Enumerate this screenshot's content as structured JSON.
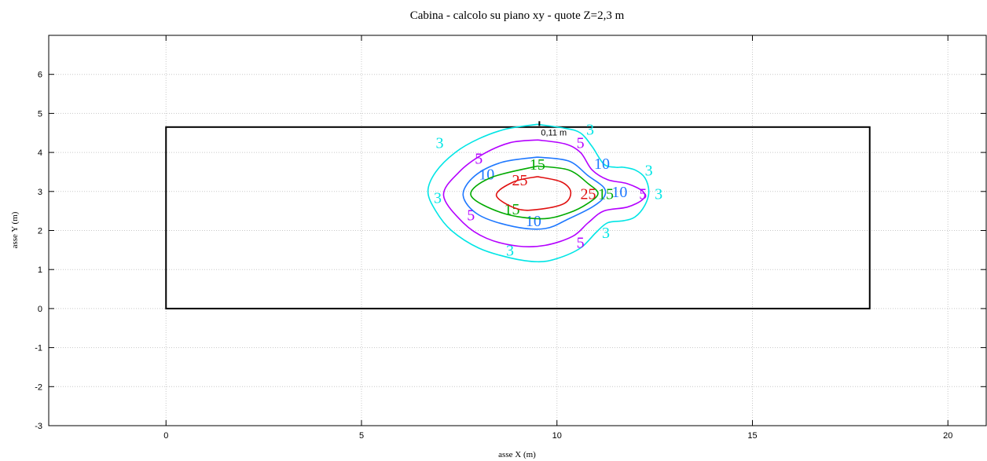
{
  "chart_data": {
    "type": "contour",
    "title": "Cabina  -  calcolo su piano xy  -  quote Z=2,3 m",
    "xlabel": "asse X (m)",
    "ylabel": "asse Y (m)",
    "xlim": [
      -3,
      21
    ],
    "ylim": [
      -3,
      7
    ],
    "xticks": [
      0,
      5,
      10,
      15,
      20
    ],
    "yticks": [
      -3,
      -2,
      -1,
      0,
      1,
      2,
      3,
      4,
      5,
      6
    ],
    "grid": true,
    "room_outline": {
      "x": [
        0,
        18
      ],
      "y": [
        0,
        4.65
      ]
    },
    "source_marker": {
      "x": 9.55,
      "y": 4.72,
      "label": "0,11 m"
    },
    "levels": [
      {
        "value": 3,
        "color": "#00e5e5",
        "path": [
          [
            9.5,
            4.72
          ],
          [
            10.2,
            4.62
          ],
          [
            10.6,
            4.5
          ],
          [
            10.9,
            4.15
          ],
          [
            11.2,
            3.7
          ],
          [
            11.5,
            3.62
          ],
          [
            11.7,
            3.62
          ],
          [
            12.0,
            3.55
          ],
          [
            12.25,
            3.35
          ],
          [
            12.35,
            3.0
          ],
          [
            12.25,
            2.65
          ],
          [
            12.0,
            2.35
          ],
          [
            11.7,
            2.25
          ],
          [
            11.3,
            2.2
          ],
          [
            11.0,
            1.95
          ],
          [
            10.6,
            1.55
          ],
          [
            10.0,
            1.28
          ],
          [
            9.5,
            1.2
          ],
          [
            8.8,
            1.3
          ],
          [
            8.0,
            1.55
          ],
          [
            7.3,
            2.0
          ],
          [
            6.9,
            2.5
          ],
          [
            6.7,
            3.0
          ],
          [
            6.9,
            3.5
          ],
          [
            7.4,
            4.0
          ],
          [
            8.0,
            4.35
          ],
          [
            8.7,
            4.6
          ],
          [
            9.5,
            4.72
          ]
        ],
        "labels": [
          [
            7.0,
            4.25
          ],
          [
            10.85,
            4.6
          ],
          [
            6.95,
            2.85
          ],
          [
            8.8,
            1.5
          ],
          [
            11.25,
            1.95
          ],
          [
            12.35,
            3.55
          ],
          [
            12.6,
            2.95
          ]
        ]
      },
      {
        "value": 5,
        "color": "#b400ff",
        "path": [
          [
            9.5,
            4.32
          ],
          [
            10.2,
            4.22
          ],
          [
            10.6,
            4.0
          ],
          [
            10.9,
            3.55
          ],
          [
            11.3,
            3.3
          ],
          [
            11.8,
            3.2
          ],
          [
            12.2,
            3.0
          ],
          [
            12.2,
            2.8
          ],
          [
            11.8,
            2.6
          ],
          [
            11.2,
            2.5
          ],
          [
            10.8,
            2.2
          ],
          [
            10.4,
            1.85
          ],
          [
            9.7,
            1.62
          ],
          [
            9.0,
            1.6
          ],
          [
            8.2,
            1.8
          ],
          [
            7.6,
            2.2
          ],
          [
            7.1,
            2.9
          ],
          [
            7.5,
            3.5
          ],
          [
            8.1,
            3.95
          ],
          [
            8.8,
            4.25
          ],
          [
            9.5,
            4.32
          ]
        ],
        "labels": [
          [
            8.0,
            3.85
          ],
          [
            10.6,
            4.25
          ],
          [
            7.8,
            2.4
          ],
          [
            10.6,
            1.7
          ],
          [
            12.2,
            2.95
          ]
        ]
      },
      {
        "value": 10,
        "color": "#1e78ff",
        "path": [
          [
            9.5,
            3.88
          ],
          [
            10.3,
            3.78
          ],
          [
            10.8,
            3.4
          ],
          [
            11.2,
            3.1
          ],
          [
            11.2,
            2.85
          ],
          [
            10.9,
            2.6
          ],
          [
            10.3,
            2.3
          ],
          [
            9.7,
            2.05
          ],
          [
            8.9,
            2.1
          ],
          [
            8.0,
            2.4
          ],
          [
            7.6,
            2.9
          ],
          [
            7.9,
            3.4
          ],
          [
            8.6,
            3.75
          ],
          [
            9.5,
            3.88
          ]
        ],
        "labels": [
          [
            8.2,
            3.45
          ],
          [
            11.15,
            3.72
          ],
          [
            9.4,
            2.25
          ],
          [
            11.6,
            3.0
          ]
        ]
      },
      {
        "value": 15,
        "color": "#00aa00",
        "path": [
          [
            9.5,
            3.65
          ],
          [
            10.3,
            3.55
          ],
          [
            10.8,
            3.2
          ],
          [
            11.05,
            2.95
          ],
          [
            10.8,
            2.7
          ],
          [
            10.3,
            2.45
          ],
          [
            9.6,
            2.3
          ],
          [
            8.6,
            2.45
          ],
          [
            7.8,
            2.9
          ],
          [
            8.3,
            3.35
          ],
          [
            9.5,
            3.65
          ]
        ],
        "labels": [
          [
            9.5,
            3.7
          ],
          [
            8.85,
            2.55
          ],
          [
            11.25,
            2.95
          ]
        ]
      },
      {
        "value": 25,
        "color": "#e01010",
        "path": [
          [
            9.5,
            3.38
          ],
          [
            10.1,
            3.25
          ],
          [
            10.35,
            3.0
          ],
          [
            10.2,
            2.7
          ],
          [
            9.6,
            2.55
          ],
          [
            9.0,
            2.55
          ],
          [
            8.45,
            2.9
          ],
          [
            8.9,
            3.25
          ],
          [
            9.5,
            3.38
          ]
        ],
        "labels": [
          [
            9.05,
            3.3
          ],
          [
            10.8,
            2.95
          ]
        ]
      }
    ]
  }
}
